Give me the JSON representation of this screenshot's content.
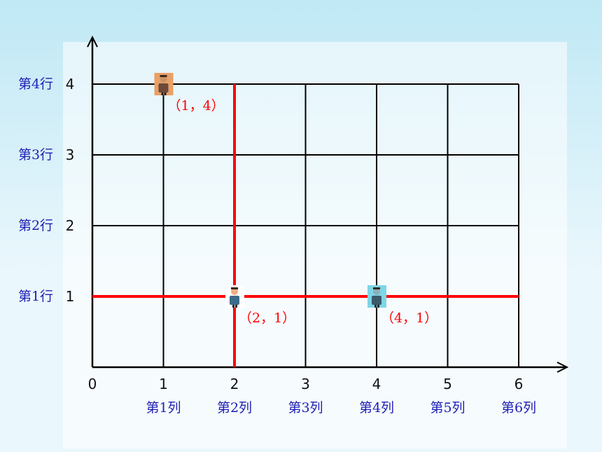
{
  "colors": {
    "background_top": "#bfe8f5",
    "background_bottom": "#eaf7fc",
    "grid": "#000000",
    "highlight": "#ff0000",
    "row_label": "#1f1fb4",
    "col_label": "#1f1fb4",
    "point_label": "#ff0000"
  },
  "chart_data": {
    "type": "scatter",
    "xlim": [
      0,
      6
    ],
    "ylim": [
      0,
      4
    ],
    "x_ticks": [
      "0",
      "1",
      "2",
      "3",
      "4",
      "5",
      "6"
    ],
    "y_ticks": [
      "1",
      "2",
      "3",
      "4"
    ],
    "row_labels": [
      "第1行",
      "第2行",
      "第3行",
      "第4行"
    ],
    "col_labels": [
      "第1列",
      "第2列",
      "第3列",
      "第4列",
      "第5列",
      "第6列"
    ],
    "highlight_lines": [
      {
        "orientation": "vertical",
        "value": 2
      },
      {
        "orientation": "horizontal",
        "value": 1
      }
    ],
    "points": [
      {
        "x": 1,
        "y": 4,
        "label": "（1，4）",
        "icon": "person-orange-icon"
      },
      {
        "x": 2,
        "y": 1,
        "label": "（2，1）",
        "icon": "person-white-icon"
      },
      {
        "x": 4,
        "y": 1,
        "label": "（4，1）",
        "icon": "person-blue-icon"
      }
    ]
  }
}
